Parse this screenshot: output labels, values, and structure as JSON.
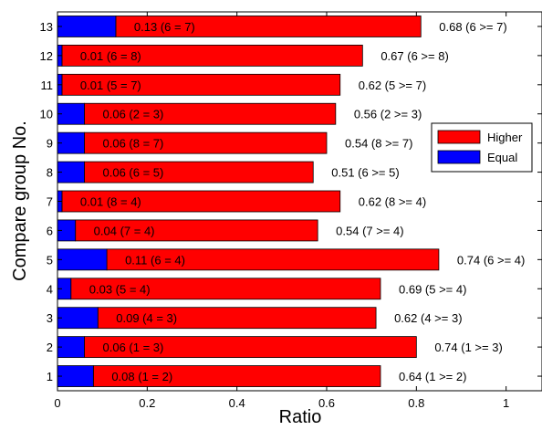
{
  "chart_data": {
    "type": "bar",
    "orientation": "horizontal",
    "stacked": true,
    "title": "",
    "xlabel": "Ratio",
    "ylabel": "Compare group No.",
    "xlim": [
      0,
      1.08
    ],
    "x_ticks": [
      0,
      0.2,
      0.4,
      0.6,
      0.8,
      1
    ],
    "x_tick_labels": [
      "0",
      "0.2",
      "0.4",
      "0.6",
      "0.8",
      "1"
    ],
    "grid": false,
    "legend_position": "right",
    "categories": [
      "1",
      "2",
      "3",
      "4",
      "5",
      "6",
      "7",
      "8",
      "9",
      "10",
      "11",
      "12",
      "13"
    ],
    "series": [
      {
        "name": "Equal",
        "color": "#0000ff",
        "values": [
          0.08,
          0.06,
          0.09,
          0.03,
          0.11,
          0.04,
          0.01,
          0.06,
          0.06,
          0.06,
          0.01,
          0.01,
          0.13
        ],
        "labels": [
          "0.08 (1 = 2)",
          "0.06 (1 = 3)",
          "0.09 (4 = 3)",
          "0.03 (5 = 4)",
          "0.11 (6 = 4)",
          "0.04 (7 = 4)",
          "0.01 (8 = 4)",
          "0.06 (6 = 5)",
          "0.06 (8 = 7)",
          "0.06 (2 = 3)",
          "0.01 (5 = 7)",
          "0.01 (6 = 8)",
          "0.13 (6 = 7)"
        ]
      },
      {
        "name": "Higher",
        "color": "#ff0000",
        "values": [
          0.64,
          0.74,
          0.62,
          0.69,
          0.74,
          0.54,
          0.62,
          0.51,
          0.54,
          0.56,
          0.62,
          0.67,
          0.68
        ],
        "labels": [
          "0.64 (1 >= 2)",
          "0.74 (1 >= 3)",
          "0.62 (4 >= 3)",
          "0.69 (5 >= 4)",
          "0.74 (6 >= 4)",
          "0.54 (7 >= 4)",
          "0.62 (8 >= 4)",
          "0.51 (6 >= 5)",
          "0.54 (8 >= 7)",
          "0.56 (2 >= 3)",
          "0.62 (5 >= 7)",
          "0.67 (6 >= 8)",
          "0.68 (6 >= 7)"
        ]
      }
    ],
    "legend": [
      "Higher",
      "Equal"
    ]
  }
}
